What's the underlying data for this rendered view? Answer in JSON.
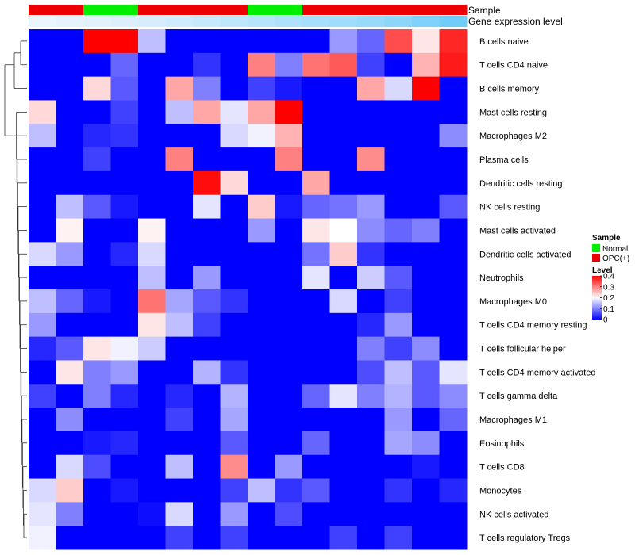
{
  "chart_data": {
    "type": "heatmap",
    "title": "",
    "rows": [
      "B cells naive",
      "T cells CD4 naive",
      "B cells memory",
      "Mast cells resting",
      "Macrophages M2",
      "Plasma cells",
      "Dendritic cells resting",
      "NK cells resting",
      "Mast cells activated",
      "Dendritic cells activated",
      "Neutrophils",
      "Macrophages M0",
      "T cells CD4 memory resting",
      "T cells follicular helper",
      "T cells CD4 memory activated",
      "T cells gamma delta",
      "Macrophages M1",
      "Eosinophils",
      "T cells CD8",
      "Monocytes",
      "NK cells activated",
      "T cells regulatory  Tregs"
    ],
    "columns": 16,
    "annotations": {
      "sample_label": "Sample",
      "gene_label": "Gene expression level",
      "sample": [
        "OPC(+)",
        "OPC(+)",
        "Normal",
        "Normal",
        "OPC(+)",
        "OPC(+)",
        "OPC(+)",
        "OPC(+)",
        "Normal",
        "Normal",
        "OPC(+)",
        "OPC(+)",
        "OPC(+)",
        "OPC(+)",
        "OPC(+)",
        "OPC(+)"
      ],
      "gene_expression": [
        0.02,
        0.05,
        0.08,
        0.12,
        0.15,
        0.2,
        0.25,
        0.3,
        0.35,
        0.4,
        0.45,
        0.5,
        0.55,
        0.62,
        0.7,
        0.8
      ]
    },
    "values": [
      [
        0,
        0,
        0.4,
        0.4,
        0.15,
        0,
        0,
        0,
        0,
        0,
        0,
        0.12,
        0.08,
        0.34,
        0.22,
        0.37
      ],
      [
        0,
        0,
        0,
        0.08,
        0,
        0,
        0.04,
        0,
        0.3,
        0.1,
        0.31,
        0.33,
        0.05,
        0,
        0.26,
        0.38
      ],
      [
        0,
        0,
        0.23,
        0.07,
        0,
        0.27,
        0.1,
        0,
        0.05,
        0.02,
        0,
        0,
        0.27,
        0.17,
        0.4,
        0
      ],
      [
        0.23,
        0,
        0,
        0.05,
        0,
        0.15,
        0.27,
        0.18,
        0.27,
        0.4,
        0,
        0,
        0,
        0,
        0,
        0
      ],
      [
        0.15,
        0,
        0.03,
        0.04,
        0,
        0,
        0,
        0.17,
        0.19,
        0.26,
        0,
        0,
        0,
        0,
        0,
        0.11
      ],
      [
        0,
        0,
        0.05,
        0,
        0,
        0.3,
        0,
        0,
        0,
        0.3,
        0,
        0,
        0.29,
        0,
        0,
        0
      ],
      [
        0,
        0,
        0,
        0,
        0,
        0,
        0.39,
        0.23,
        0,
        0,
        0.27,
        0,
        0,
        0,
        0,
        0
      ],
      [
        0,
        0.15,
        0.07,
        0.02,
        0,
        0,
        0.18,
        0,
        0.24,
        0.02,
        0.08,
        0.09,
        0.12,
        0,
        0,
        0.07
      ],
      [
        0,
        0.21,
        0,
        0,
        0.21,
        0,
        0,
        0,
        0.12,
        0,
        0.22,
        0.2,
        0.11,
        0.08,
        0.1,
        0
      ],
      [
        0.17,
        0.12,
        0,
        0.03,
        0.17,
        0,
        0,
        0,
        0,
        0,
        0.09,
        0.24,
        0.04,
        0,
        0,
        0
      ],
      [
        0,
        0,
        0,
        0,
        0.15,
        0,
        0.12,
        0,
        0,
        0,
        0.18,
        0,
        0.16,
        0.07,
        0,
        0
      ],
      [
        0.15,
        0.08,
        0.02,
        0,
        0.31,
        0.13,
        0.07,
        0.04,
        0,
        0,
        0,
        0.17,
        0,
        0.05,
        0,
        0
      ],
      [
        0.12,
        0,
        0,
        0,
        0.22,
        0.15,
        0.05,
        0,
        0,
        0,
        0,
        0,
        0.03,
        0.12,
        0,
        0
      ],
      [
        0.03,
        0.07,
        0.22,
        0.19,
        0.16,
        0,
        0,
        0,
        0,
        0,
        0,
        0,
        0.1,
        0.05,
        0.11,
        0
      ],
      [
        0,
        0.22,
        0.1,
        0.12,
        0,
        0,
        0.14,
        0.04,
        0,
        0,
        0,
        0,
        0.06,
        0.15,
        0.07,
        0.18
      ],
      [
        0.05,
        0,
        0.1,
        0.03,
        0,
        0.03,
        0,
        0.14,
        0,
        0,
        0.08,
        0.18,
        0.1,
        0.14,
        0.07,
        0.11
      ],
      [
        0,
        0.11,
        0,
        0,
        0,
        0.05,
        0,
        0.13,
        0,
        0,
        0,
        0,
        0,
        0.12,
        0,
        0.08
      ],
      [
        0,
        0,
        0.02,
        0.03,
        0,
        0,
        0,
        0.07,
        0,
        0,
        0.08,
        0,
        0,
        0.13,
        0.11,
        0
      ],
      [
        0,
        0.17,
        0.06,
        0,
        0,
        0.15,
        0,
        0.29,
        0,
        0.12,
        0,
        0,
        0,
        0,
        0.02,
        0
      ],
      [
        0.17,
        0.24,
        0,
        0.02,
        0,
        0,
        0,
        0.05,
        0.15,
        0.04,
        0.07,
        0,
        0,
        0.04,
        0,
        0.03
      ],
      [
        0.18,
        0.1,
        0,
        0,
        0.01,
        0.17,
        0,
        0.12,
        0,
        0.06,
        0,
        0,
        0,
        0,
        0,
        0
      ],
      [
        0.19,
        0,
        0,
        0,
        0,
        0.05,
        0,
        0.05,
        0,
        0,
        0,
        0.05,
        0,
        0.05,
        0,
        0
      ]
    ],
    "legend": {
      "sample_title": "Sample",
      "sample_items": [
        {
          "name": "Normal",
          "color": "#00ee00"
        },
        {
          "name": "OPC(+)",
          "color": "#ee0000"
        }
      ],
      "level_title": "Level",
      "level_ticks": [
        "0.4",
        "0.3",
        "0.2",
        "0.1",
        "0"
      ],
      "level_range": [
        0,
        0.4
      ]
    },
    "colors": {
      "low": "#0000ff",
      "mid": "#ffffff",
      "high": "#ff0000",
      "normal": "#00ee00",
      "opc": "#ee0000",
      "gene_low": "#eef6fc",
      "gene_high": "#4fc3f7"
    }
  }
}
